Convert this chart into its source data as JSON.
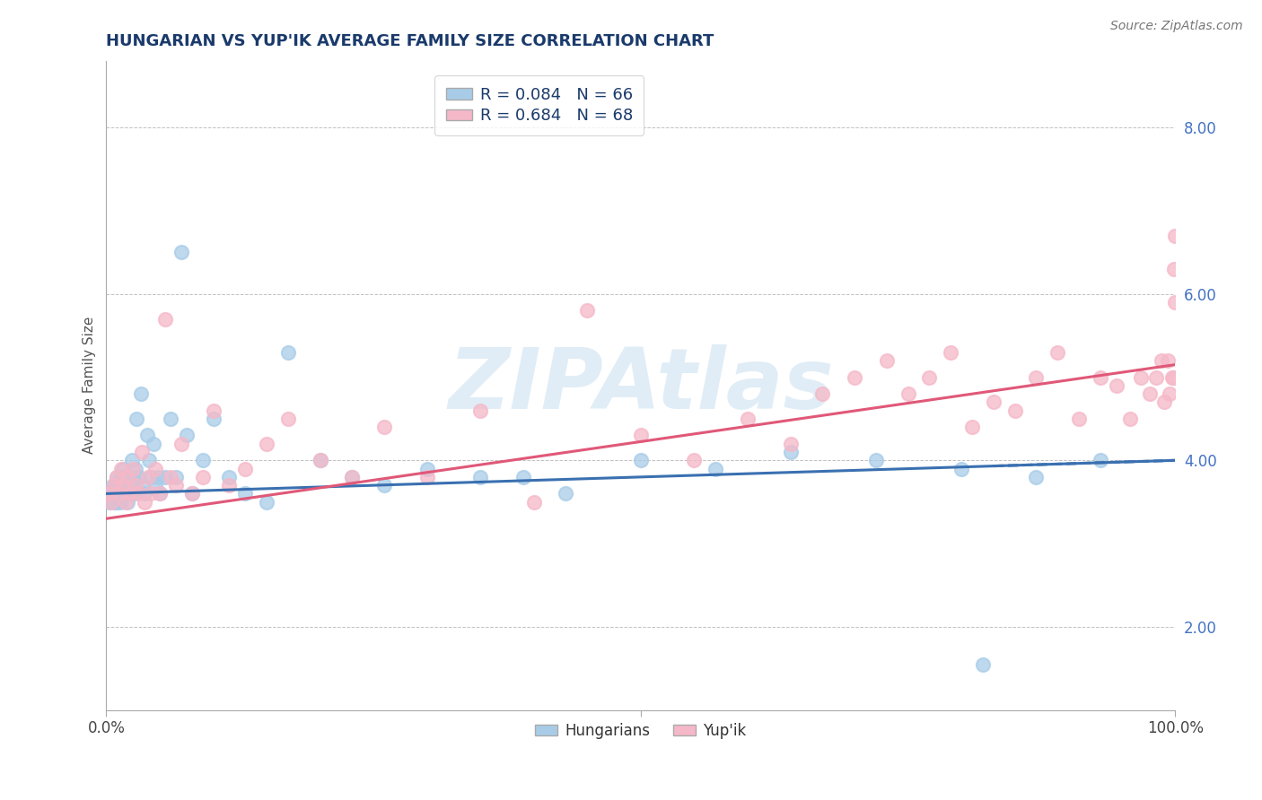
{
  "title": "HUNGARIAN VS YUP'IK AVERAGE FAMILY SIZE CORRELATION CHART",
  "source_text": "Source: ZipAtlas.com",
  "ylabel": "Average Family Size",
  "x_min": 0.0,
  "x_max": 1.0,
  "y_min": 1.0,
  "y_max": 8.8,
  "yticks": [
    2.0,
    4.0,
    6.0,
    8.0
  ],
  "title_color": "#1a3a6b",
  "title_fontsize": 13,
  "watermark_text": "ZIPAtlas",
  "legend_label1": "R = 0.084   N = 66",
  "legend_label2": "R = 0.684   N = 68",
  "legend_bottom1": "Hungarians",
  "legend_bottom2": "Yup'ik",
  "color_blue": "#a8cce8",
  "color_pink": "#f5b8c8",
  "color_blue_line": "#3a70b0",
  "color_pink_line": "#e05878",
  "color_ytick": "#4472c4",
  "hungarian_x": [
    0.003,
    0.004,
    0.005,
    0.006,
    0.007,
    0.008,
    0.009,
    0.01,
    0.01,
    0.011,
    0.012,
    0.013,
    0.014,
    0.015,
    0.015,
    0.016,
    0.017,
    0.018,
    0.019,
    0.02,
    0.021,
    0.022,
    0.023,
    0.024,
    0.025,
    0.026,
    0.027,
    0.028,
    0.03,
    0.032,
    0.034,
    0.036,
    0.038,
    0.04,
    0.042,
    0.044,
    0.046,
    0.048,
    0.05,
    0.055,
    0.06,
    0.065,
    0.07,
    0.075,
    0.08,
    0.09,
    0.1,
    0.115,
    0.13,
    0.15,
    0.17,
    0.2,
    0.23,
    0.26,
    0.3,
    0.35,
    0.39,
    0.43,
    0.5,
    0.57,
    0.64,
    0.72,
    0.8,
    0.87,
    0.93,
    0.82
  ],
  "hungarian_y": [
    3.5,
    3.6,
    3.5,
    3.7,
    3.6,
    3.5,
    3.7,
    3.5,
    3.8,
    3.6,
    3.7,
    3.5,
    3.8,
    3.6,
    3.7,
    3.9,
    3.6,
    3.8,
    3.7,
    3.5,
    3.8,
    3.6,
    3.7,
    4.0,
    3.8,
    3.6,
    3.9,
    4.5,
    3.8,
    4.8,
    3.7,
    3.6,
    4.3,
    4.0,
    3.8,
    4.2,
    3.7,
    3.8,
    3.6,
    3.8,
    4.5,
    3.8,
    6.5,
    4.3,
    3.6,
    4.0,
    4.5,
    3.8,
    3.6,
    3.5,
    5.3,
    4.0,
    3.8,
    3.7,
    3.9,
    3.8,
    3.8,
    3.6,
    4.0,
    3.9,
    4.1,
    4.0,
    3.9,
    3.8,
    4.0,
    1.55
  ],
  "yupik_x": [
    0.003,
    0.005,
    0.007,
    0.01,
    0.012,
    0.014,
    0.016,
    0.018,
    0.02,
    0.022,
    0.025,
    0.027,
    0.03,
    0.033,
    0.036,
    0.039,
    0.042,
    0.046,
    0.05,
    0.055,
    0.06,
    0.065,
    0.07,
    0.08,
    0.09,
    0.1,
    0.115,
    0.13,
    0.15,
    0.17,
    0.2,
    0.23,
    0.26,
    0.3,
    0.35,
    0.4,
    0.45,
    0.5,
    0.55,
    0.6,
    0.64,
    0.67,
    0.7,
    0.73,
    0.75,
    0.77,
    0.79,
    0.81,
    0.83,
    0.85,
    0.87,
    0.89,
    0.91,
    0.93,
    0.945,
    0.958,
    0.968,
    0.976,
    0.982,
    0.987,
    0.99,
    0.993,
    0.995,
    0.997,
    0.998,
    0.999,
    0.9995,
    0.9998
  ],
  "yupik_y": [
    3.6,
    3.5,
    3.7,
    3.8,
    3.6,
    3.9,
    3.7,
    3.5,
    3.8,
    3.6,
    3.9,
    3.7,
    3.6,
    4.1,
    3.5,
    3.8,
    3.6,
    3.9,
    3.6,
    5.7,
    3.8,
    3.7,
    4.2,
    3.6,
    3.8,
    4.6,
    3.7,
    3.9,
    4.2,
    4.5,
    4.0,
    3.8,
    4.4,
    3.8,
    4.6,
    3.5,
    5.8,
    4.3,
    4.0,
    4.5,
    4.2,
    4.8,
    5.0,
    5.2,
    4.8,
    5.0,
    5.3,
    4.4,
    4.7,
    4.6,
    5.0,
    5.3,
    4.5,
    5.0,
    4.9,
    4.5,
    5.0,
    4.8,
    5.0,
    5.2,
    4.7,
    5.2,
    4.8,
    5.0,
    5.0,
    6.3,
    6.7,
    5.9
  ]
}
